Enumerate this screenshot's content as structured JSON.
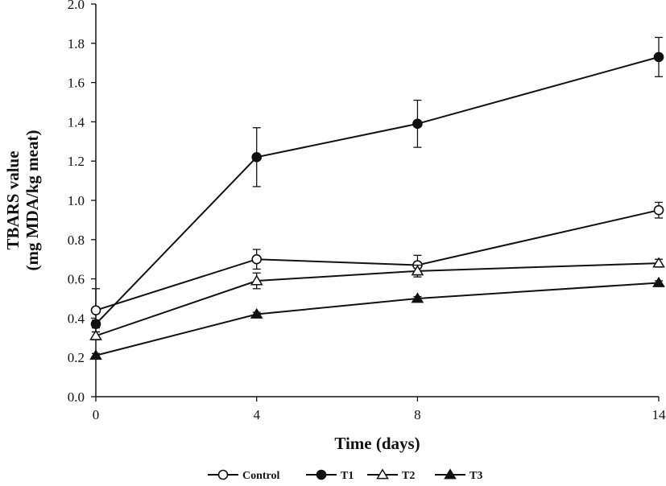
{
  "chart_data": {
    "type": "line",
    "title": "",
    "xlabel": "Time (days)",
    "ylabel_line1": "TBARS value",
    "ylabel_line2": "(mg MDA/kg meat)",
    "x": [
      0,
      4,
      8,
      14
    ],
    "x_tick_labels": [
      "0",
      "4",
      "8",
      "14"
    ],
    "ylim": [
      0,
      2.0
    ],
    "y_ticks": [
      0,
      0.2,
      0.4,
      0.6,
      0.8,
      1.0,
      1.2,
      1.4,
      1.6,
      1.8,
      2.0
    ],
    "y_tick_labels": [
      "0.0",
      "0.2",
      "0.4",
      "0.6",
      "0.8",
      "1.0",
      "1.2",
      "1.4",
      "1.6",
      "1.8",
      "2.0"
    ],
    "grid": false,
    "legend_position": "bottom",
    "series": [
      {
        "name": "Control",
        "marker": "circle-open",
        "values": [
          0.44,
          0.7,
          0.67,
          0.95
        ],
        "errors": [
          0.11,
          0.05,
          0.05,
          0.04
        ]
      },
      {
        "name": "T1",
        "marker": "circle-filled",
        "values": [
          0.37,
          1.22,
          1.39,
          1.73
        ],
        "errors": [
          0.02,
          0.15,
          0.12,
          0.1
        ]
      },
      {
        "name": "T2",
        "marker": "triangle-open",
        "values": [
          0.31,
          0.59,
          0.64,
          0.68
        ],
        "errors": [
          0.02,
          0.04,
          0.03,
          0.02
        ]
      },
      {
        "name": "T3",
        "marker": "triangle-filled",
        "values": [
          0.21,
          0.42,
          0.5,
          0.58
        ],
        "errors": [
          0.01,
          0.01,
          0.01,
          0.01
        ]
      }
    ],
    "colors": {
      "line": "#111111",
      "background": "#ffffff"
    }
  }
}
